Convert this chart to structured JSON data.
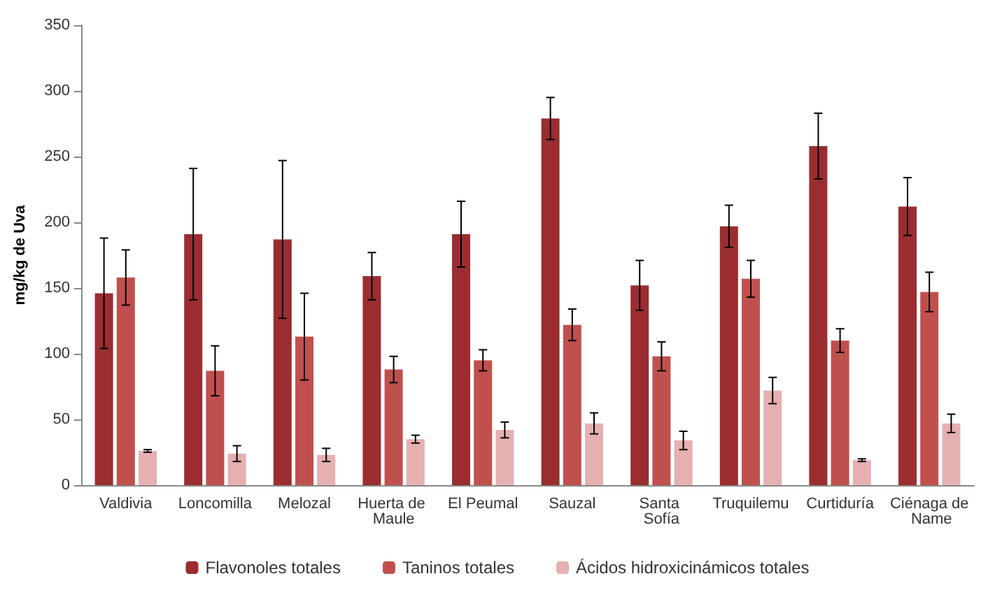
{
  "chart_data": {
    "type": "bar",
    "ylabel": "mg/kg de Uva",
    "categories": [
      "Valdivia",
      "Loncomilla",
      "Melozal",
      "Huerta de Maule",
      "El Peumal",
      "Sauzal",
      "Santa Sofía",
      "Truquilemu",
      "Curtiduría",
      "Ciénaga de Name"
    ],
    "series": [
      {
        "name": "Flavonoles totales",
        "color": "#9b2d30",
        "values": [
          146,
          191,
          187,
          159,
          191,
          279,
          152,
          197,
          258,
          212
        ],
        "errors": [
          42,
          50,
          60,
          18,
          25,
          16,
          19,
          16,
          25,
          22
        ]
      },
      {
        "name": "Taninos totales",
        "color": "#c0504d",
        "values": [
          158,
          87,
          113,
          88,
          95,
          122,
          98,
          157,
          110,
          147
        ],
        "errors": [
          21,
          19,
          33,
          10,
          8,
          12,
          11,
          14,
          9,
          15
        ]
      },
      {
        "name": "Ácidos hidroxicinámicos totales",
        "color": "#e6b0b0",
        "values": [
          26,
          24,
          23,
          35,
          42,
          47,
          34,
          72,
          19,
          47
        ],
        "errors": [
          1,
          6,
          5,
          3,
          6,
          8,
          7,
          10,
          1,
          7
        ]
      }
    ],
    "ylim": [
      0,
      350
    ],
    "yticks": [
      0,
      50,
      100,
      150,
      200,
      250,
      300,
      350
    ],
    "grid": false,
    "legend": "bottom"
  }
}
